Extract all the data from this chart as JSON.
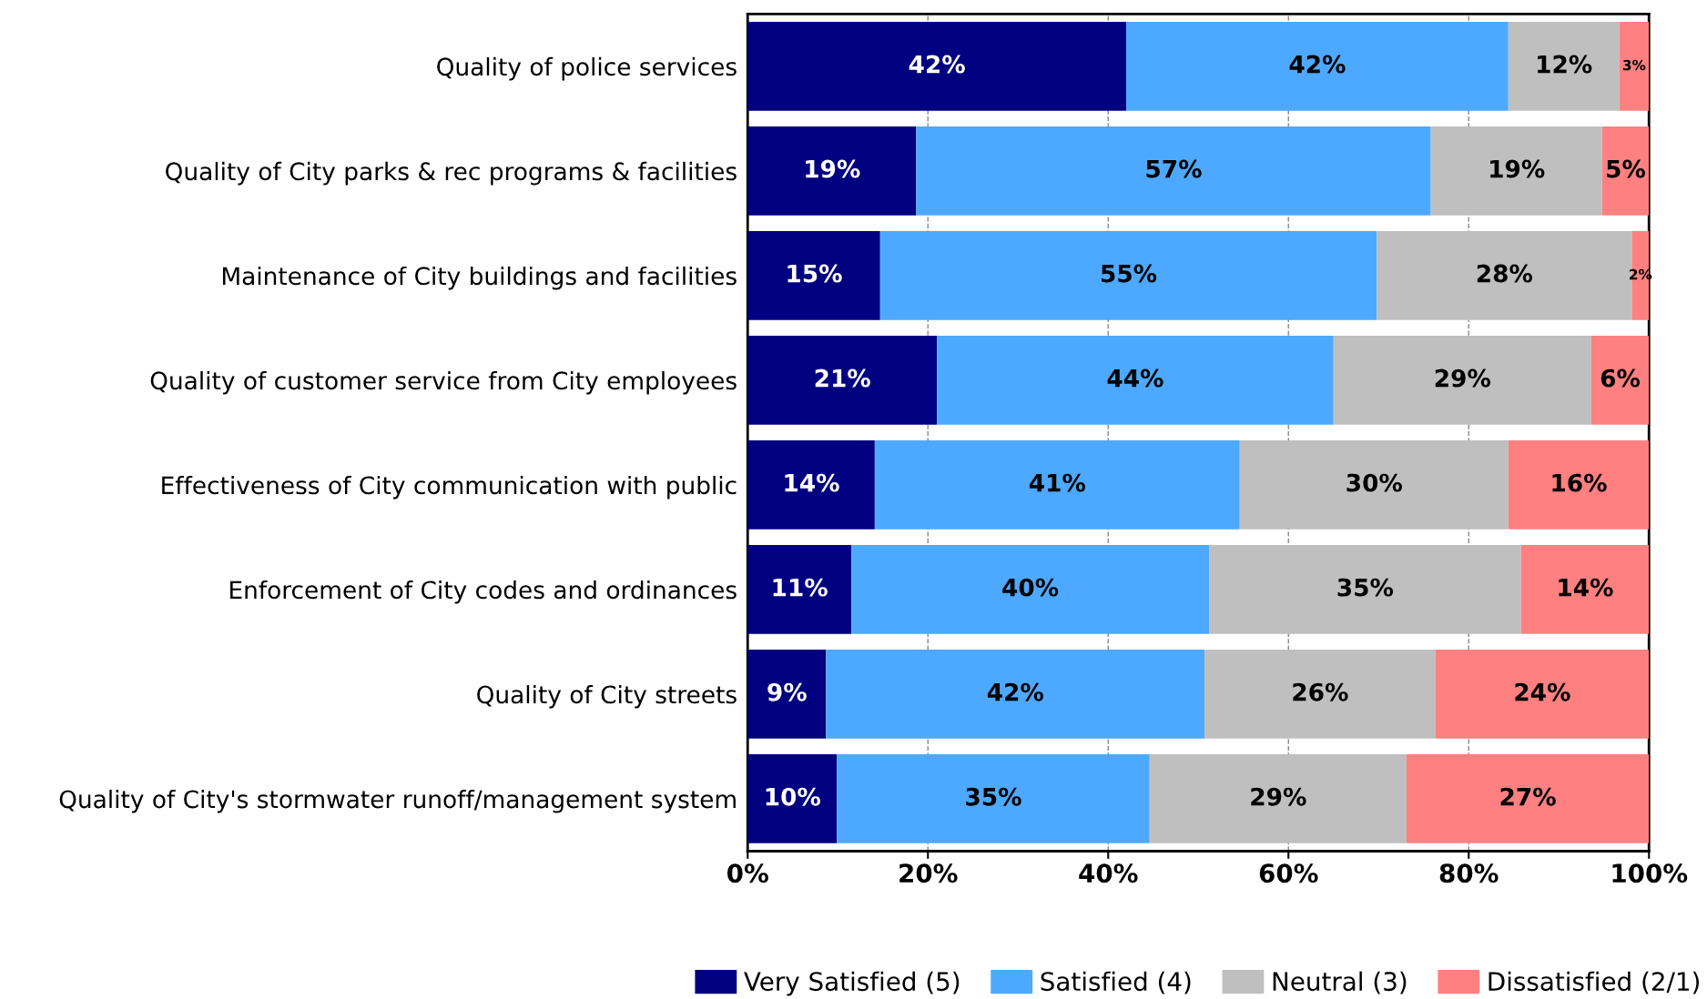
{
  "chart_data": {
    "type": "bar",
    "orientation": "horizontal",
    "stacked": true,
    "categories": [
      "Quality of police services",
      "Quality of City parks & rec programs & facilities",
      "Maintenance of City buildings and facilities",
      "Quality of customer service from City employees",
      "Effectiveness of City communication with public",
      "Enforcement of City codes and ordinances",
      "Quality of City streets",
      "Quality of City's stormwater runoff/management system"
    ],
    "series": [
      {
        "name": "Very Satisfied (5)",
        "color": "#000080",
        "values": [
          42.0,
          18.7,
          14.7,
          21.0,
          14.1,
          11.5,
          8.7,
          9.9
        ],
        "value_labels": [
          "42%",
          "19%",
          "15%",
          "21%",
          "14%",
          "11%",
          "9%",
          "10%"
        ]
      },
      {
        "name": "Satisfied (4)",
        "color": "#4da9ff",
        "values": [
          42.4,
          57.1,
          55.1,
          44.0,
          40.5,
          39.7,
          42.0,
          34.7
        ],
        "value_labels": [
          "42%",
          "57%",
          "55%",
          "44%",
          "41%",
          "40%",
          "42%",
          "35%"
        ]
      },
      {
        "name": "Neutral (3)",
        "color": "#bfbfbf",
        "values": [
          12.3,
          19.0,
          28.3,
          28.6,
          29.8,
          34.6,
          25.6,
          28.5
        ],
        "value_labels": [
          "12%",
          "19%",
          "28%",
          "29%",
          "30%",
          "35%",
          "26%",
          "29%"
        ]
      },
      {
        "name": "Dissatisfied (2/1)",
        "color": "#ff8080",
        "values": [
          3.3,
          5.2,
          1.9,
          6.4,
          15.6,
          14.2,
          23.7,
          26.9
        ],
        "value_labels": [
          "3%",
          "5%",
          "2%",
          "6%",
          "16%",
          "14%",
          "24%",
          "27%"
        ]
      }
    ],
    "xlim": [
      0,
      100
    ],
    "xticks": [
      {
        "value": 0,
        "label": "0%"
      },
      {
        "value": 20,
        "label": "20%"
      },
      {
        "value": 40,
        "label": "40%"
      },
      {
        "value": 60,
        "label": "60%"
      },
      {
        "value": 80,
        "label": "80%"
      },
      {
        "value": 100,
        "label": "100%"
      }
    ],
    "grid": "x",
    "legend": "bottom"
  }
}
